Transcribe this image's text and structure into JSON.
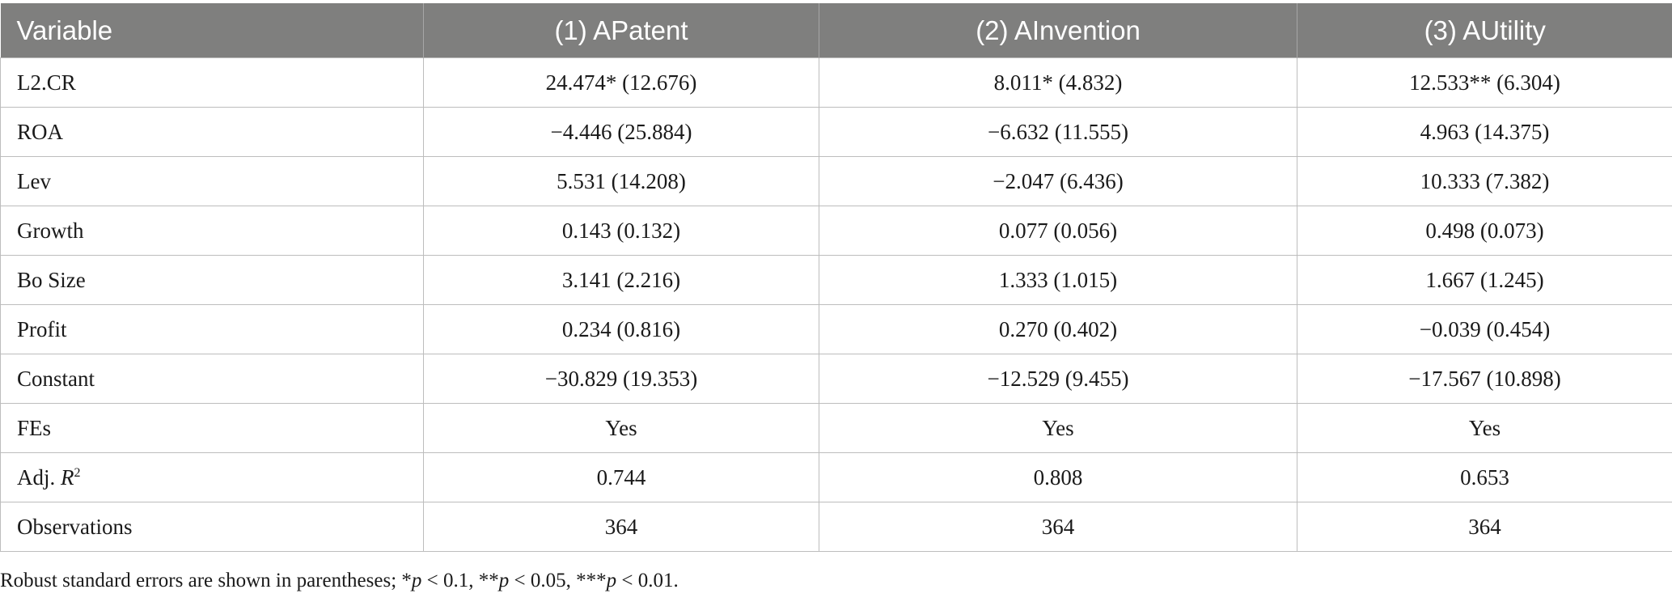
{
  "table": {
    "headers": [
      "Variable",
      "(1) APatent",
      "(2) AInvention",
      "(3) AUtility"
    ],
    "rows": [
      [
        "L2.CR",
        "24.474* (12.676)",
        "8.011* (4.832)",
        "12.533** (6.304)"
      ],
      [
        "ROA",
        "−4.446 (25.884)",
        "−6.632 (11.555)",
        "4.963 (14.375)"
      ],
      [
        "Lev",
        "5.531 (14.208)",
        "−2.047 (6.436)",
        "10.333 (7.382)"
      ],
      [
        "Growth",
        "0.143 (0.132)",
        "0.077 (0.056)",
        "0.498 (0.073)"
      ],
      [
        "Bo Size",
        "3.141 (2.216)",
        "1.333 (1.015)",
        "1.667 (1.245)"
      ],
      [
        "Profit",
        "0.234 (0.816)",
        "0.270 (0.402)",
        "−0.039 (0.454)"
      ],
      [
        "Constant",
        "−30.829 (19.353)",
        "−12.529 (9.455)",
        "−17.567 (10.898)"
      ],
      [
        "FEs",
        "Yes",
        "Yes",
        "Yes"
      ],
      [
        "Adj. R²",
        "0.744",
        "0.808",
        "0.653"
      ],
      [
        "Observations",
        "364",
        "364",
        "364"
      ]
    ],
    "adj_r2_label": {
      "prefix": "Adj. ",
      "italic": "R",
      "sup": "2"
    }
  },
  "footnote": {
    "lead": "Robust standard errors are shown in parentheses; *",
    "p1": "p",
    "t1": " < 0.1, **",
    "p2": "p",
    "t2": " < 0.05, ***",
    "p3": "p",
    "t3": " < 0.01."
  }
}
